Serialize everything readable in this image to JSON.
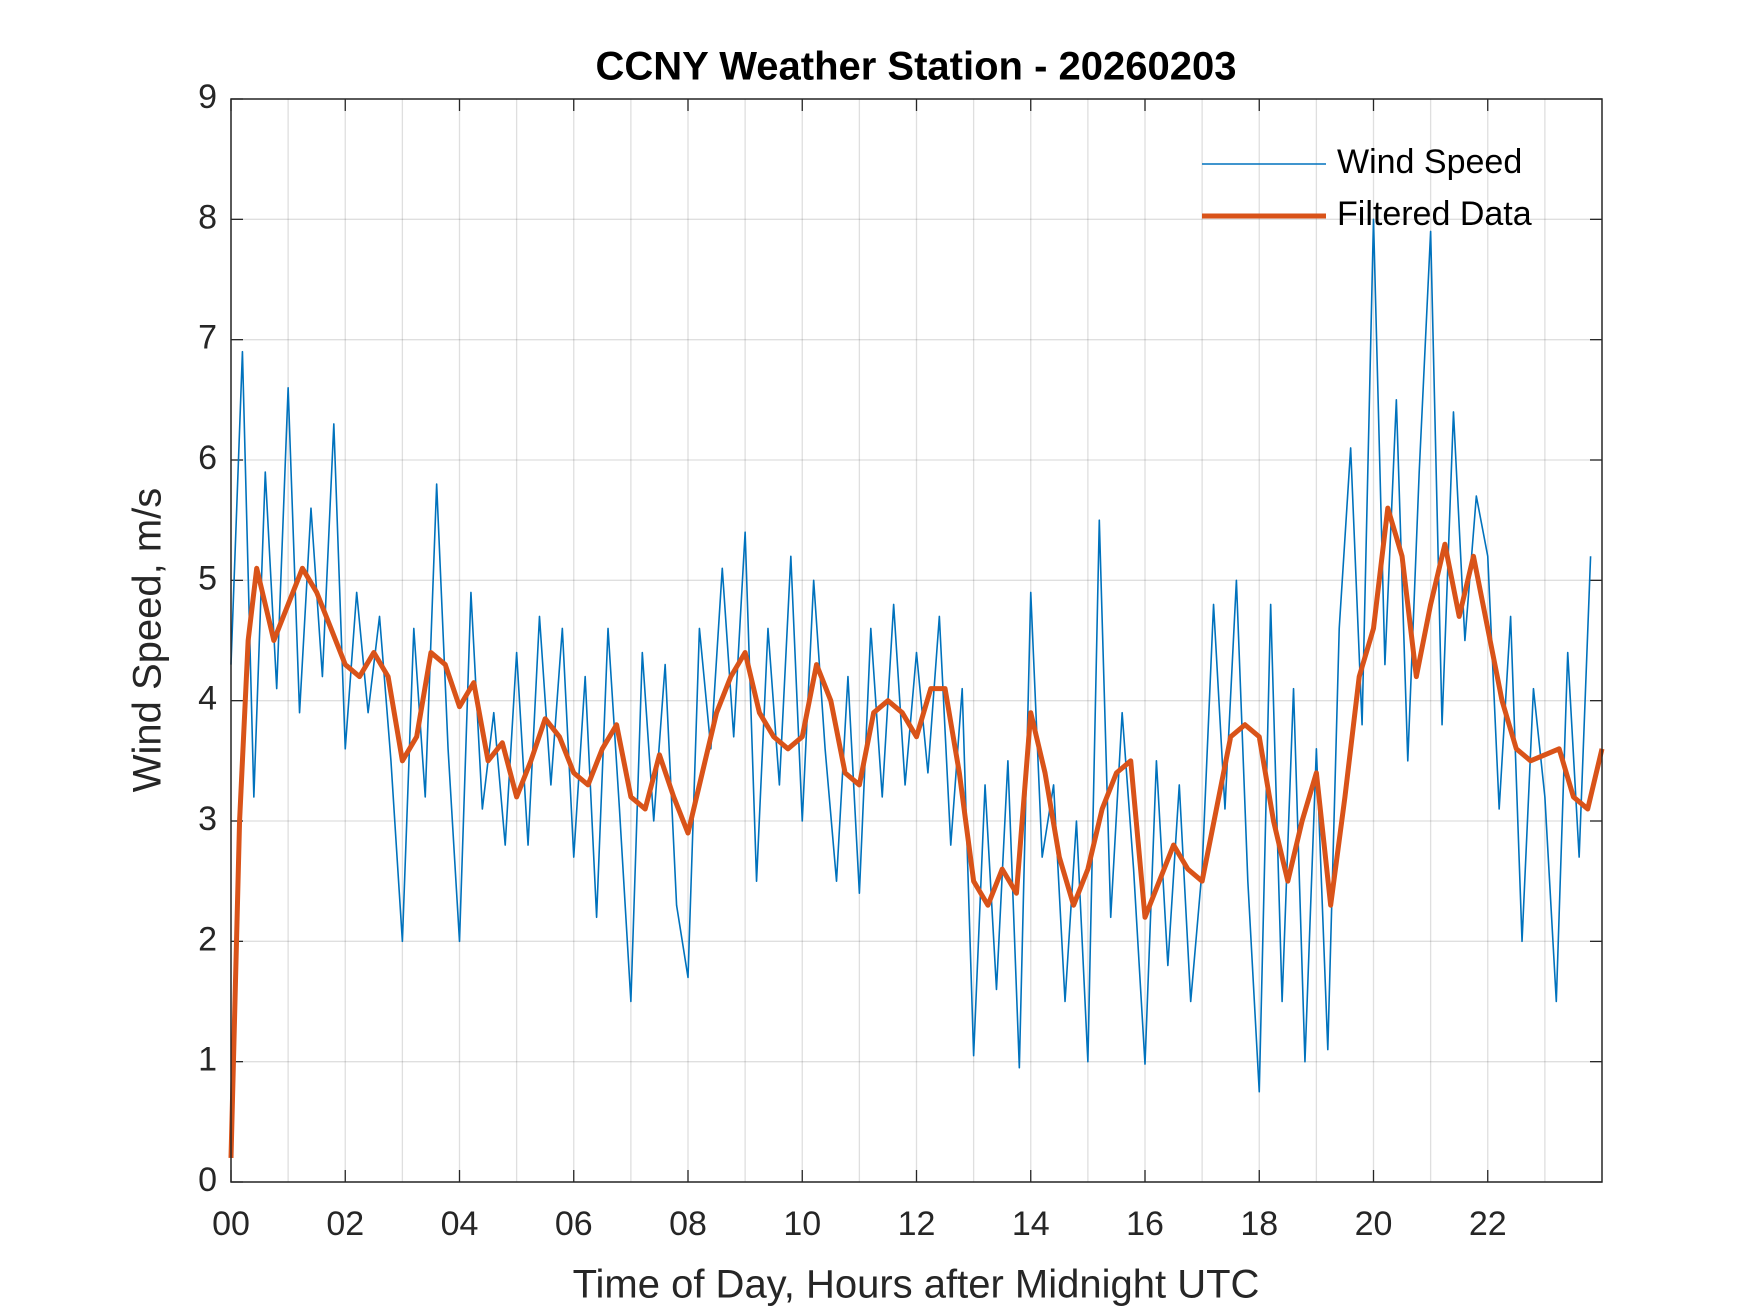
{
  "chart_data": {
    "type": "line",
    "title": "CCNY Weather Station - 20260203",
    "xlabel": "Time of Day, Hours after Midnight UTC",
    "ylabel": "Wind Speed, m/s",
    "xlim": [
      0,
      24
    ],
    "ylim": [
      0,
      9
    ],
    "xticks": [
      {
        "value": 0,
        "label": "00"
      },
      {
        "value": 2,
        "label": "02"
      },
      {
        "value": 4,
        "label": "04"
      },
      {
        "value": 6,
        "label": "06"
      },
      {
        "value": 8,
        "label": "08"
      },
      {
        "value": 10,
        "label": "10"
      },
      {
        "value": 12,
        "label": "12"
      },
      {
        "value": 14,
        "label": "14"
      },
      {
        "value": 16,
        "label": "16"
      },
      {
        "value": 18,
        "label": "18"
      },
      {
        "value": 20,
        "label": "20"
      },
      {
        "value": 22,
        "label": "22"
      }
    ],
    "yticks": [
      0,
      1,
      2,
      3,
      4,
      5,
      6,
      7,
      8,
      9
    ],
    "grid": true,
    "minor_grid": true,
    "legend": "upper right",
    "series": [
      {
        "name": "Wind Speed",
        "color": "#0072BD",
        "x": [
          0,
          0.2,
          0.4,
          0.6,
          0.8,
          1,
          1.2,
          1.4,
          1.6,
          1.8,
          2,
          2.2,
          2.4,
          2.6,
          2.8,
          3,
          3.2,
          3.4,
          3.6,
          3.8,
          4,
          4.2,
          4.4,
          4.6,
          4.8,
          5,
          5.2,
          5.4,
          5.6,
          5.8,
          6,
          6.2,
          6.4,
          6.6,
          6.8,
          7,
          7.2,
          7.4,
          7.6,
          7.8,
          8,
          8.2,
          8.4,
          8.6,
          8.8,
          9,
          9.2,
          9.4,
          9.6,
          9.8,
          10,
          10.2,
          10.4,
          10.6,
          10.8,
          11,
          11.2,
          11.4,
          11.6,
          11.8,
          12,
          12.2,
          12.4,
          12.6,
          12.8,
          13,
          13.2,
          13.4,
          13.6,
          13.8,
          14,
          14.2,
          14.4,
          14.6,
          14.8,
          15,
          15.2,
          15.4,
          15.6,
          15.8,
          16,
          16.2,
          16.4,
          16.6,
          16.8,
          17,
          17.2,
          17.4,
          17.6,
          17.8,
          18,
          18.2,
          18.4,
          18.6,
          18.8,
          19,
          19.2,
          19.4,
          19.6,
          19.8,
          20,
          20.2,
          20.4,
          20.6,
          20.8,
          21,
          21.2,
          21.4,
          21.6,
          21.8,
          22,
          22.2,
          22.4,
          22.6,
          22.8,
          23,
          23.2,
          23.4,
          23.6,
          23.8
        ],
        "values": [
          4.3,
          6.9,
          3.2,
          5.9,
          4.1,
          6.6,
          3.9,
          5.6,
          4.2,
          6.3,
          3.6,
          4.9,
          3.9,
          4.7,
          3.5,
          2.0,
          4.6,
          3.2,
          5.8,
          3.6,
          2.0,
          4.9,
          3.1,
          3.9,
          2.8,
          4.4,
          2.8,
          4.7,
          3.3,
          4.6,
          2.7,
          4.2,
          2.2,
          4.6,
          3.1,
          1.5,
          4.4,
          3.0,
          4.3,
          2.3,
          1.7,
          4.6,
          3.6,
          5.1,
          3.7,
          5.4,
          2.5,
          4.6,
          3.3,
          5.2,
          3.0,
          5.0,
          3.6,
          2.5,
          4.2,
          2.4,
          4.6,
          3.2,
          4.8,
          3.3,
          4.4,
          3.4,
          4.7,
          2.8,
          4.1,
          1.05,
          3.3,
          1.6,
          3.5,
          0.95,
          4.9,
          2.7,
          3.3,
          1.5,
          3.0,
          1.0,
          5.5,
          2.2,
          3.9,
          2.6,
          0.98,
          3.5,
          1.8,
          3.3,
          1.5,
          2.6,
          4.8,
          3.1,
          5.0,
          2.5,
          0.75,
          4.8,
          1.5,
          4.1,
          1.0,
          3.6,
          1.1,
          4.6,
          6.1,
          3.8,
          8.0,
          4.3,
          6.5,
          3.5,
          5.9,
          7.9,
          3.8,
          6.4,
          4.5,
          5.7,
          5.2,
          3.1,
          4.7,
          2.0,
          4.1,
          3.2,
          1.5,
          4.4,
          2.7,
          5.2
        ]
      },
      {
        "name": "Filtered Data",
        "color": "#D95319",
        "x": [
          0,
          0.15,
          0.3,
          0.45,
          0.75,
          1,
          1.25,
          1.5,
          1.75,
          2,
          2.25,
          2.5,
          2.75,
          3,
          3.25,
          3.5,
          3.75,
          4,
          4.25,
          4.5,
          4.75,
          5,
          5.25,
          5.5,
          5.75,
          6,
          6.25,
          6.5,
          6.75,
          7,
          7.25,
          7.5,
          7.75,
          8,
          8.25,
          8.5,
          8.75,
          9,
          9.25,
          9.5,
          9.75,
          10,
          10.25,
          10.5,
          10.75,
          11,
          11.25,
          11.5,
          11.75,
          12,
          12.25,
          12.5,
          12.75,
          13,
          13.25,
          13.5,
          13.75,
          14,
          14.25,
          14.5,
          14.75,
          15,
          15.25,
          15.5,
          15.75,
          16,
          16.25,
          16.5,
          16.75,
          17,
          17.25,
          17.5,
          17.75,
          18,
          18.25,
          18.5,
          18.75,
          19,
          19.25,
          19.5,
          19.75,
          20,
          20.25,
          20.5,
          20.75,
          21,
          21.25,
          21.5,
          21.75,
          22,
          22.25,
          22.5,
          22.75,
          23,
          23.25,
          23.5,
          23.75,
          24
        ],
        "values": [
          0.2,
          3.0,
          4.5,
          5.1,
          4.5,
          4.8,
          5.1,
          4.9,
          4.6,
          4.3,
          4.2,
          4.4,
          4.2,
          3.5,
          3.7,
          4.4,
          4.3,
          3.95,
          4.15,
          3.5,
          3.65,
          3.2,
          3.5,
          3.85,
          3.7,
          3.4,
          3.3,
          3.6,
          3.8,
          3.2,
          3.1,
          3.55,
          3.2,
          2.9,
          3.4,
          3.9,
          4.2,
          4.4,
          3.9,
          3.7,
          3.6,
          3.7,
          4.3,
          4.0,
          3.4,
          3.3,
          3.9,
          4.0,
          3.9,
          3.7,
          4.1,
          4.1,
          3.4,
          2.5,
          2.3,
          2.6,
          2.4,
          3.9,
          3.4,
          2.7,
          2.3,
          2.6,
          3.1,
          3.4,
          3.5,
          2.2,
          2.5,
          2.8,
          2.6,
          2.5,
          3.1,
          3.7,
          3.8,
          3.7,
          3.0,
          2.5,
          3.0,
          3.4,
          2.3,
          3.2,
          4.2,
          4.6,
          5.6,
          5.2,
          4.2,
          4.8,
          5.3,
          4.7,
          5.2,
          4.6,
          4.0,
          3.6,
          3.5,
          3.55,
          3.6,
          3.2,
          3.1,
          3.6
        ]
      }
    ]
  }
}
